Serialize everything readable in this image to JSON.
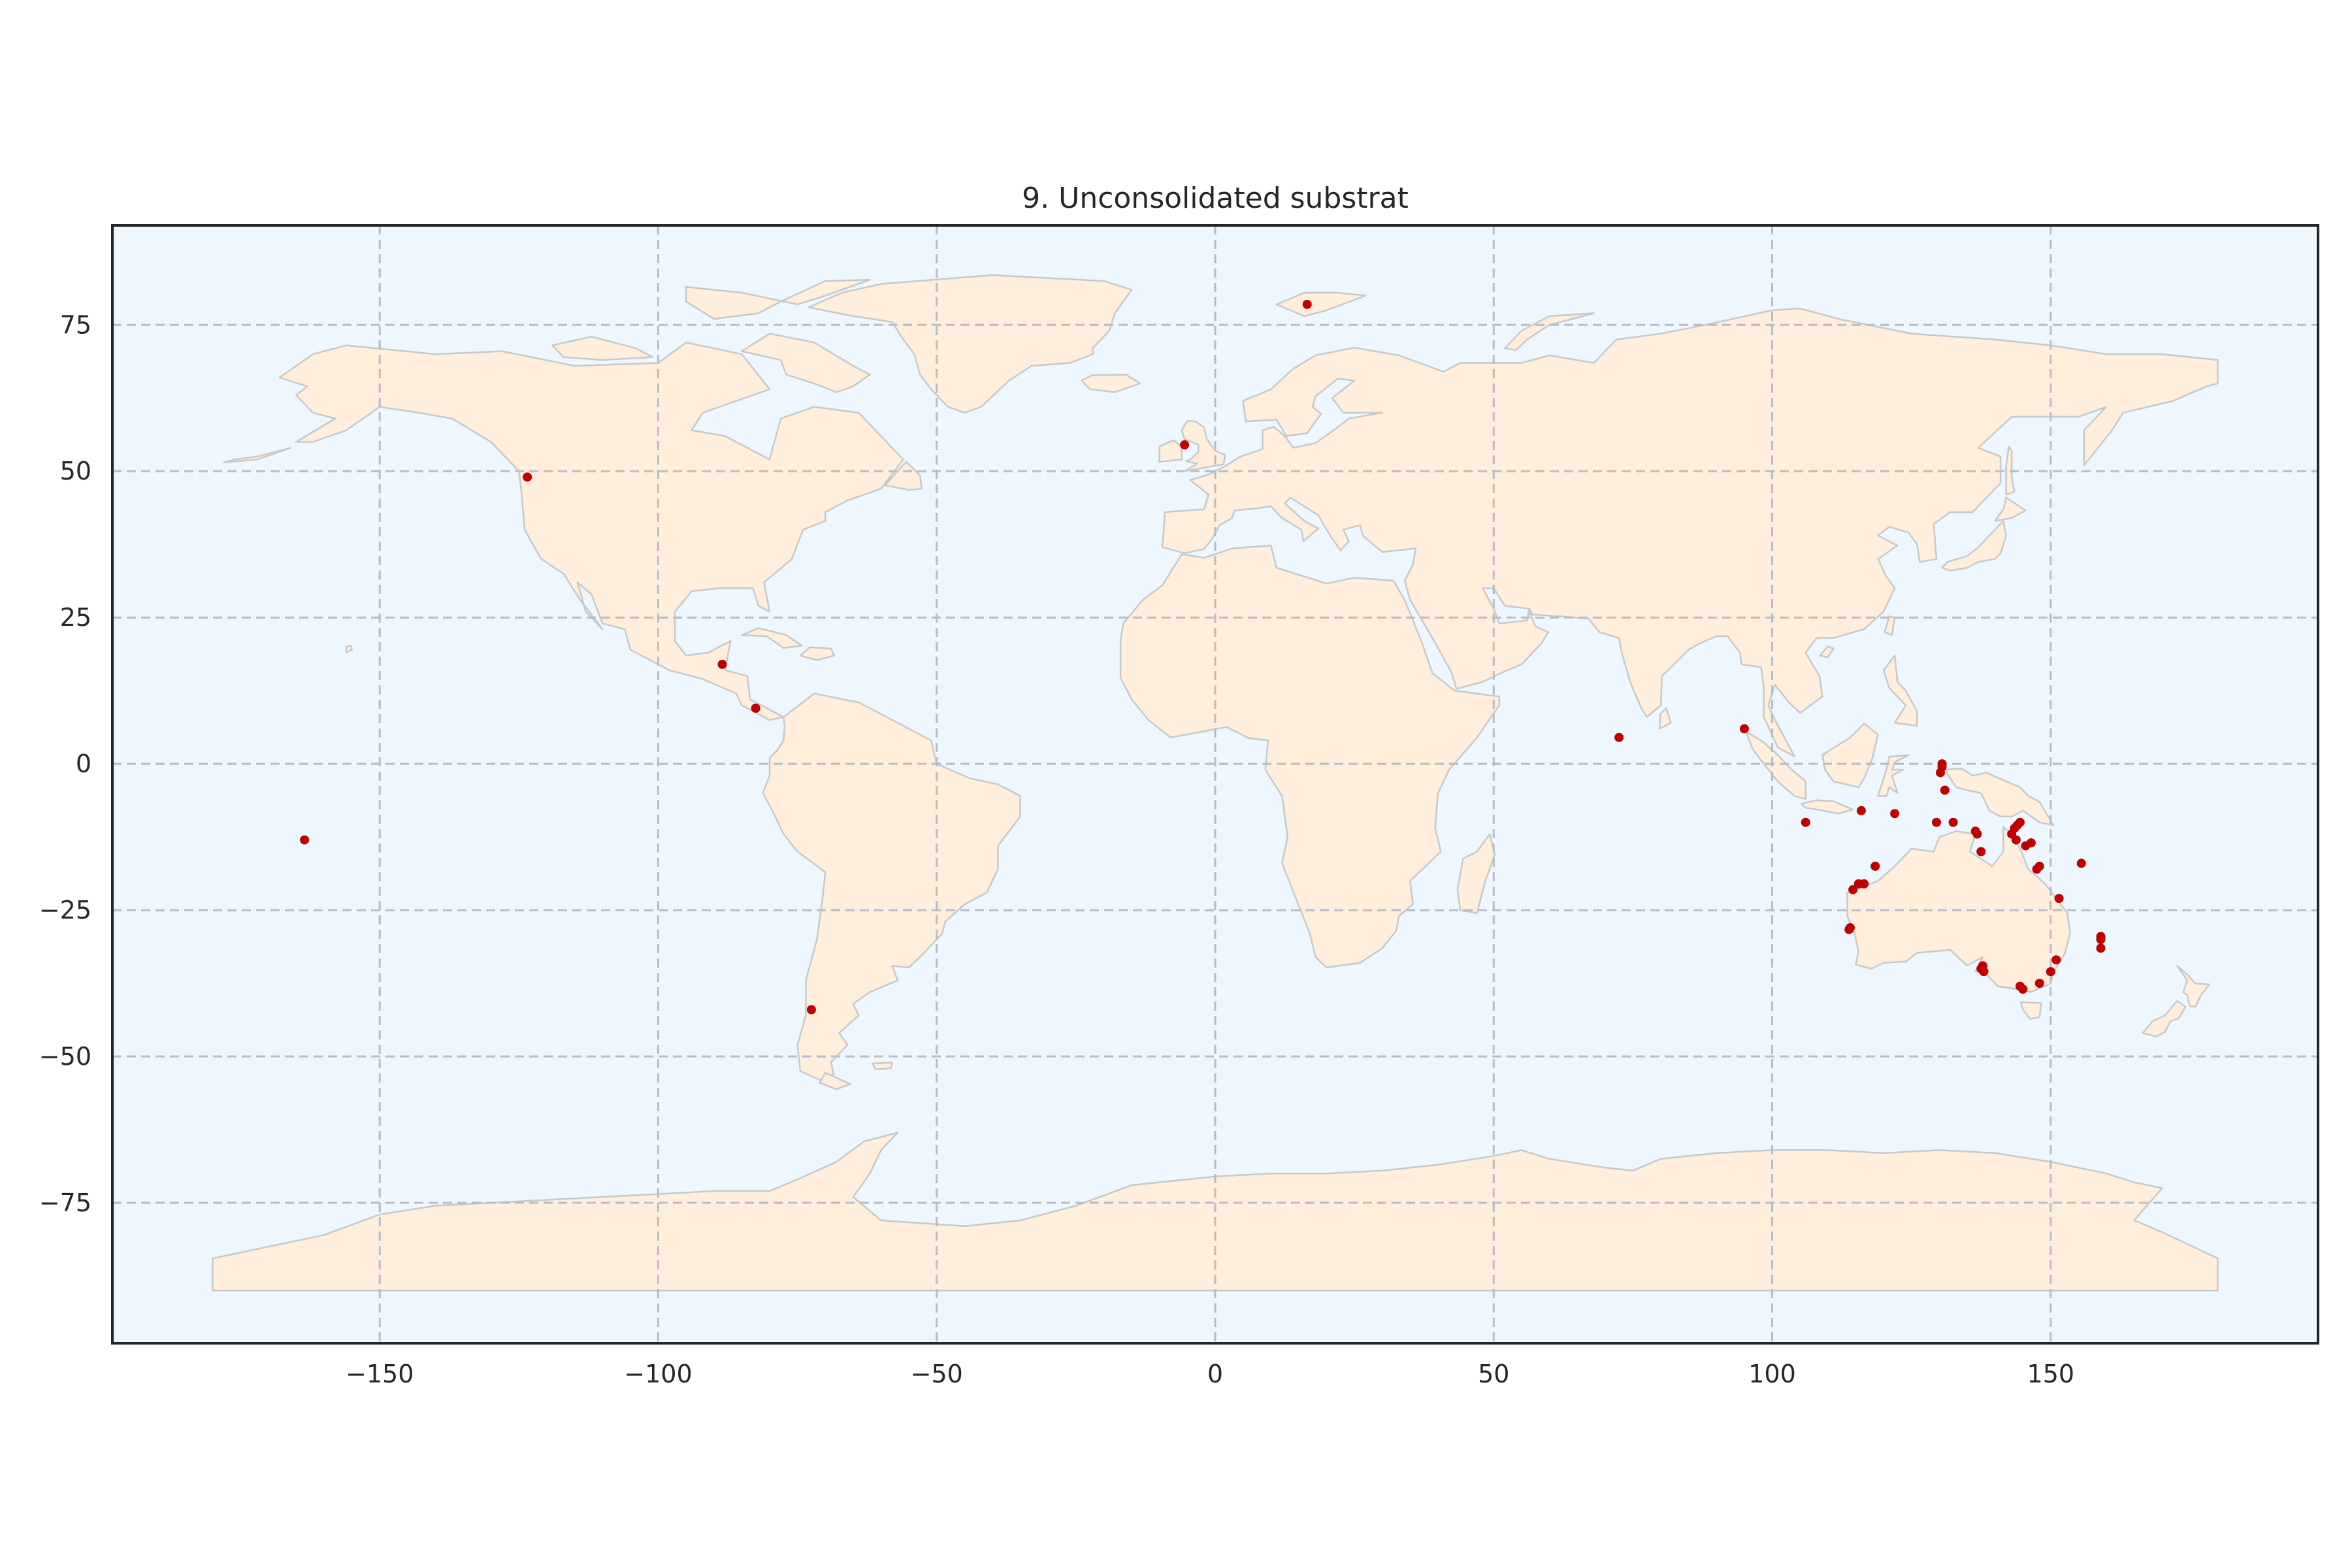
{
  "title": "9. Unconsolidated substrat",
  "colors": {
    "ocean": "#eef7fd",
    "land": "#feeedb",
    "coast": "#c8c8c8",
    "grid": "#b8bcc4",
    "points": "#c00000",
    "frame": "#262626"
  },
  "axes": {
    "x_ticks": [
      -150,
      -100,
      -50,
      0,
      50,
      100,
      150
    ],
    "x_tick_labels": [
      "−150",
      "−100",
      "−50",
      "0",
      "50",
      "100",
      "150"
    ],
    "y_ticks": [
      75,
      50,
      25,
      0,
      -25,
      -50,
      -75
    ],
    "y_tick_labels": [
      "75",
      "50",
      "25",
      "0",
      "−25",
      "−50",
      "−75"
    ],
    "xlim": [
      -198,
      198
    ],
    "ylim": [
      -99,
      92
    ],
    "grid": true,
    "grid_style": "dashed"
  },
  "chart_data": {
    "type": "scatter",
    "title": "9. Unconsolidated substrat",
    "xlabel": "",
    "ylabel": "",
    "xlim": [
      -198,
      198
    ],
    "ylim": [
      -99,
      92
    ],
    "series": [
      {
        "x": [
          -123.5,
          -163.5,
          16.5,
          -5.5,
          -88.5,
          -82.5,
          -72.5,
          72.5,
          95,
          106,
          116,
          122,
          118.5,
          114.5,
          115.5,
          116.5,
          114,
          113.8,
          129.5,
          130.5,
          130.5,
          130.2,
          131,
          132.5,
          136.5,
          136.8,
          137.5,
          143,
          143.5,
          144,
          144.5,
          143.8,
          145.5,
          146.5,
          147.5,
          148,
          151.5,
          155.5,
          159,
          159,
          159,
          137.5,
          138,
          137.8,
          144.5,
          145,
          148,
          150,
          151
        ],
        "y": [
          49,
          -13,
          78.5,
          54.5,
          17,
          9.5,
          -42,
          4.5,
          6,
          -10,
          -8,
          -8.5,
          -17.5,
          -21.5,
          -20.5,
          -20.5,
          -28,
          -28.3,
          -10,
          0,
          -0.5,
          -1.5,
          -4.5,
          -10,
          -11.5,
          -12,
          -15,
          -12,
          -11,
          -10.5,
          -10,
          -13,
          -14,
          -13.5,
          -18,
          -17.5,
          -23,
          -17,
          -29.5,
          -30,
          -31.5,
          -35,
          -35.5,
          -34.5,
          -38,
          -38.5,
          -37.5,
          -35.5,
          -33.5
        ]
      }
    ]
  }
}
